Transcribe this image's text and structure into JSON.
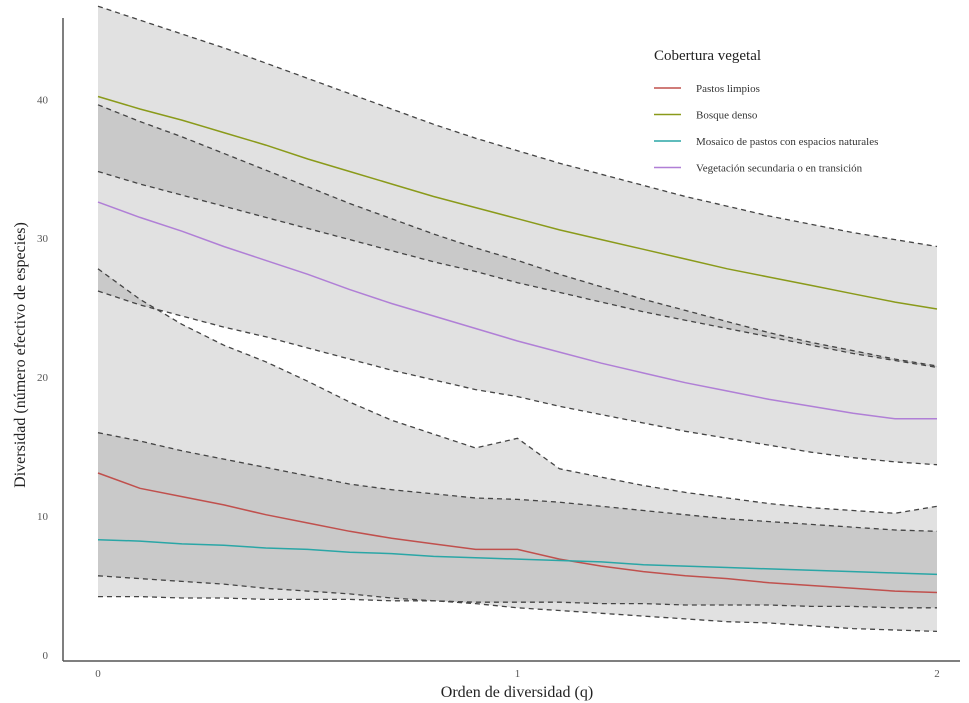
{
  "chart_data": {
    "type": "line",
    "xlabel": "Orden de diversidad (q)",
    "ylabel": "Diversidad (número efectivo de especies)",
    "x_ticks": [
      "0",
      "1",
      "2"
    ],
    "y_ticks": [
      "0",
      "10",
      "20",
      "30",
      "40"
    ],
    "xlim": [
      0,
      2
    ],
    "ylim": [
      0,
      47
    ],
    "grid": false,
    "legend": {
      "title": "Cobertura vegetal",
      "placement": "top-right"
    },
    "x": [
      0,
      0.1,
      0.2,
      0.3,
      0.4,
      0.5,
      0.6,
      0.7,
      0.8,
      0.9,
      1.0,
      1.1,
      1.2,
      1.3,
      1.4,
      1.5,
      1.6,
      1.7,
      1.8,
      1.9,
      2.0
    ],
    "series": [
      {
        "name": "Pastos limpios",
        "color": "#c0504d",
        "values": [
          13.1,
          12.0,
          11.4,
          10.8,
          10.1,
          9.5,
          8.9,
          8.4,
          8.0,
          7.6,
          7.6,
          6.9,
          6.4,
          6.0,
          5.7,
          5.5,
          5.2,
          5.0,
          4.8,
          4.6,
          4.5
        ],
        "lower": [
          4.2,
          4.2,
          4.1,
          4.1,
          4.0,
          4.0,
          4.0,
          3.9,
          3.9,
          3.8,
          3.8,
          3.8,
          3.7,
          3.7,
          3.6,
          3.6,
          3.6,
          3.5,
          3.5,
          3.4,
          3.4
        ],
        "upper": [
          27.8,
          25.6,
          23.8,
          22.3,
          21.1,
          19.7,
          18.2,
          16.9,
          15.9,
          14.9,
          15.6,
          13.4,
          12.8,
          12.2,
          11.7,
          11.3,
          10.9,
          10.6,
          10.4,
          10.2,
          10.7
        ]
      },
      {
        "name": "Bosque denso",
        "color": "#8a9a1a",
        "values": [
          40.2,
          39.3,
          38.5,
          37.6,
          36.7,
          35.7,
          34.8,
          33.9,
          33.0,
          32.2,
          31.4,
          30.6,
          29.9,
          29.2,
          28.5,
          27.8,
          27.2,
          26.6,
          26.0,
          25.4,
          24.9
        ],
        "lower": [
          34.8,
          33.9,
          33.1,
          32.3,
          31.5,
          30.7,
          29.9,
          29.1,
          28.3,
          27.6,
          26.8,
          26.1,
          25.4,
          24.7,
          24.1,
          23.5,
          22.9,
          22.3,
          21.7,
          21.2,
          20.7
        ],
        "upper": [
          46.7,
          45.7,
          44.7,
          43.7,
          42.6,
          41.5,
          40.4,
          39.3,
          38.2,
          37.2,
          36.3,
          35.4,
          34.6,
          33.8,
          33.0,
          32.3,
          31.6,
          31.0,
          30.4,
          29.9,
          29.4
        ]
      },
      {
        "name": "Mosaico de pastos con espacios naturales",
        "color": "#2aa6a6",
        "values": [
          8.3,
          8.2,
          8.0,
          7.9,
          7.7,
          7.6,
          7.4,
          7.3,
          7.1,
          7.0,
          6.9,
          6.8,
          6.7,
          6.5,
          6.4,
          6.3,
          6.2,
          6.1,
          6.0,
          5.9,
          5.8
        ],
        "lower": [
          5.7,
          5.5,
          5.3,
          5.1,
          4.8,
          4.6,
          4.4,
          4.1,
          3.9,
          3.7,
          3.4,
          3.2,
          3.0,
          2.8,
          2.6,
          2.4,
          2.3,
          2.1,
          1.9,
          1.8,
          1.7
        ],
        "upper": [
          16.0,
          15.4,
          14.7,
          14.1,
          13.5,
          12.9,
          12.3,
          11.9,
          11.6,
          11.3,
          11.2,
          11.0,
          10.7,
          10.4,
          10.1,
          9.8,
          9.6,
          9.4,
          9.2,
          9.0,
          8.9
        ]
      },
      {
        "name": "Vegetación secundaria o en transición",
        "color": "#b07fd6",
        "values": [
          32.6,
          31.5,
          30.5,
          29.4,
          28.4,
          27.4,
          26.3,
          25.3,
          24.4,
          23.5,
          22.6,
          21.8,
          21.0,
          20.3,
          19.6,
          19.0,
          18.4,
          17.9,
          17.4,
          17.0,
          17.0
        ],
        "lower": [
          26.2,
          25.2,
          24.4,
          23.6,
          22.9,
          22.1,
          21.3,
          20.5,
          19.8,
          19.1,
          18.6,
          17.9,
          17.3,
          16.7,
          16.1,
          15.6,
          15.1,
          14.6,
          14.2,
          13.9,
          13.7
        ],
        "upper": [
          39.6,
          38.4,
          37.3,
          36.1,
          34.9,
          33.7,
          32.5,
          31.4,
          30.3,
          29.3,
          28.4,
          27.4,
          26.5,
          25.6,
          24.8,
          24.0,
          23.2,
          22.5,
          21.9,
          21.3,
          20.8
        ]
      }
    ]
  }
}
